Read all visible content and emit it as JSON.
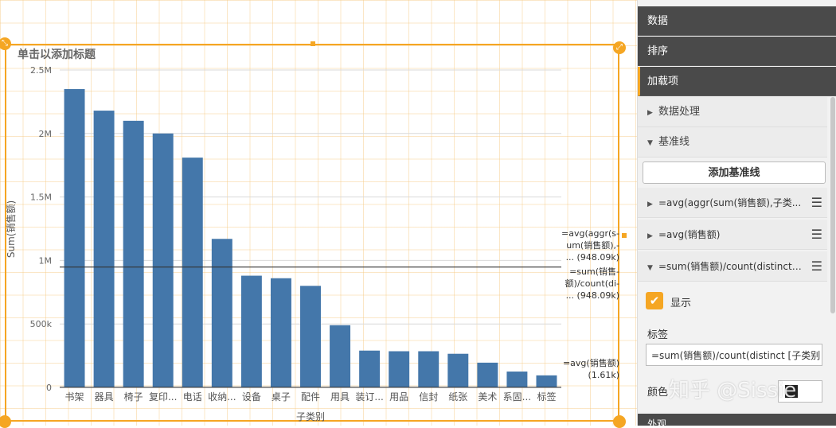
{
  "chart": {
    "title_placeholder": "单击以添加标题"
  },
  "chart_data": {
    "type": "bar",
    "xlabel": "子类别",
    "ylabel": "Sum(销售额)",
    "ylim": [
      0,
      2500000
    ],
    "yticks": [
      0,
      500000,
      1000000,
      1500000,
      2000000,
      2500000
    ],
    "ytick_labels": [
      "0",
      "500k",
      "1M",
      "1.5M",
      "2M",
      "2.5M"
    ],
    "categories": [
      "书架",
      "器具",
      "椅子",
      "复印...",
      "电话",
      "收纳...",
      "设备",
      "桌子",
      "配件",
      "用具",
      "装订...",
      "用品",
      "信封",
      "纸张",
      "美术",
      "系固...",
      "标签"
    ],
    "values": [
      2350000,
      2180000,
      2100000,
      2000000,
      1810000,
      1170000,
      880000,
      860000,
      800000,
      490000,
      290000,
      285000,
      285000,
      265000,
      195000,
      125000,
      95000
    ],
    "reference_lines": [
      {
        "value": 948090,
        "label_lines": [
          "=avg(aggr(s-",
          "um(销售额),-",
          "...  (948.09k)"
        ]
      },
      {
        "value": 948090,
        "label_lines": [
          "=sum(销售-",
          "额)/count(di-",
          "...  (948.09k)"
        ]
      },
      {
        "value": 1610,
        "label_lines": [
          "=avg(销售额)",
          "(1.61k)"
        ]
      }
    ],
    "bar_color": "#4477aa"
  },
  "sidebar": {
    "sections": [
      "数据",
      "排序",
      "加载项"
    ],
    "subsections": [
      "数据处理",
      "基准线"
    ],
    "add_button": "添加基准线",
    "ref_items": [
      "=avg(aggr(sum(销售额),子类...",
      "=avg(销售额)",
      "=sum(销售额)/count(distinct [..."
    ],
    "show_label": "显示",
    "label_title": "标签",
    "label_value": "=sum(销售额)/count(distinct [子类别",
    "color_title": "颜色",
    "bottom_section": "外观"
  },
  "watermark": "知乎 @Sissie"
}
